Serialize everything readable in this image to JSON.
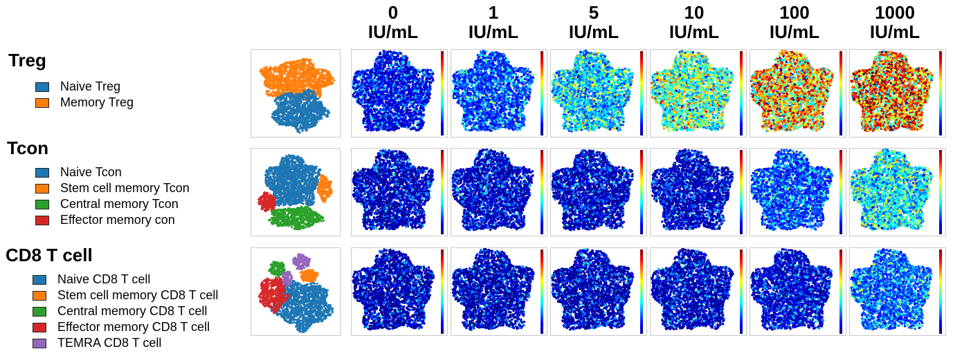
{
  "column_headers": [
    {
      "dose": "0",
      "unit": "IU/mL"
    },
    {
      "dose": "1",
      "unit": "IU/mL"
    },
    {
      "dose": "5",
      "unit": "IU/mL"
    },
    {
      "dose": "10",
      "unit": "IU/mL"
    },
    {
      "dose": "100",
      "unit": "IU/mL"
    },
    {
      "dose": "1000",
      "unit": "IU/mL"
    }
  ],
  "groups": [
    {
      "title": "Treg",
      "populations": [
        {
          "label": "Naive Treg",
          "color": "#1f77b4"
        },
        {
          "label": "Memory Treg",
          "color": "#ff7f0e"
        }
      ],
      "heat_levels": [
        0.12,
        0.22,
        0.38,
        0.52,
        0.78,
        0.88
      ]
    },
    {
      "title": "Tcon",
      "populations": [
        {
          "label": "Naive Tcon",
          "color": "#1f77b4"
        },
        {
          "label": "Stem cell memory Tcon",
          "color": "#ff7f0e"
        },
        {
          "label": "Central memory Tcon",
          "color": "#2ca02c"
        },
        {
          "label": "Effector memory con",
          "color": "#d62728"
        }
      ],
      "heat_levels": [
        0.06,
        0.07,
        0.06,
        0.07,
        0.22,
        0.42
      ]
    },
    {
      "title": "CD8 T cell",
      "populations": [
        {
          "label": "Naive CD8 T cell",
          "color": "#1f77b4"
        },
        {
          "label": "Stem cell memory CD8 T cell",
          "color": "#ff7f0e"
        },
        {
          "label": "Central memory CD8 T cell",
          "color": "#2ca02c"
        },
        {
          "label": "Effector memory CD8 T cell",
          "color": "#d62728"
        },
        {
          "label": "TEMRA CD8 T cell",
          "color": "#9467bd"
        }
      ],
      "heat_levels": [
        0.05,
        0.05,
        0.05,
        0.06,
        0.08,
        0.25
      ]
    }
  ]
}
